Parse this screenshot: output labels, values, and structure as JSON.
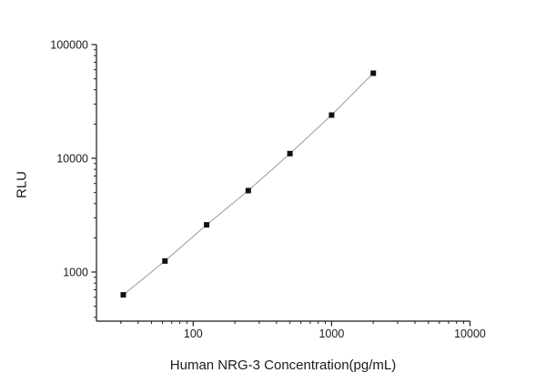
{
  "figure": {
    "background_color": "#ffffff",
    "text_color": "#1a1a1a"
  },
  "chart_data": {
    "type": "scatter",
    "title": "",
    "xlabel": "Human NRG-3 Concentration(pg/mL)",
    "ylabel": "RLU",
    "x_scale": "log",
    "y_scale": "log",
    "xlim": [
      20,
      10000
    ],
    "ylim": [
      370,
      100000
    ],
    "x_major_ticks": [
      100,
      1000,
      10000
    ],
    "y_major_ticks": [
      1000,
      10000,
      100000
    ],
    "x": [
      31.25,
      62.5,
      125,
      250,
      500,
      1000,
      2000
    ],
    "y": [
      630,
      1250,
      2600,
      5200,
      11000,
      24000,
      56000
    ],
    "grid": false,
    "legend": "none",
    "marker": {
      "shape": "square",
      "size": 6,
      "color": "#111111"
    },
    "line": {
      "color": "#999999",
      "width": 1
    },
    "axis_color": "#1a1a1a"
  }
}
